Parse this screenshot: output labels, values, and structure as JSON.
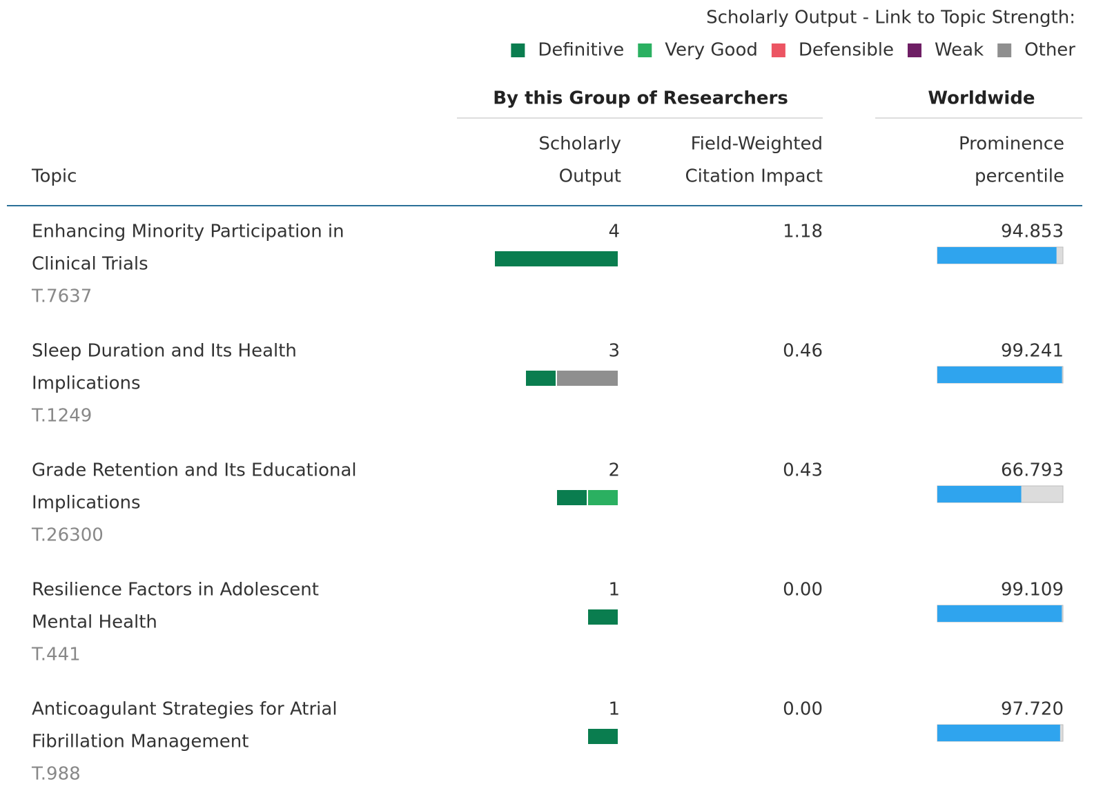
{
  "legend": {
    "title": "Scholarly Output - Link to Topic Strength:",
    "items": [
      {
        "label": "Definitive",
        "color": "#0a7d4f"
      },
      {
        "label": "Very Good",
        "color": "#2bb061"
      },
      {
        "label": "Defensible",
        "color": "#ec5563"
      },
      {
        "label": "Weak",
        "color": "#6e1e64"
      },
      {
        "label": "Other",
        "color": "#8f8f8f"
      }
    ]
  },
  "table": {
    "group_headers": [
      "By this Group of Researchers",
      "Worldwide"
    ],
    "columns": {
      "topic": [
        "Topic"
      ],
      "output": [
        "Scholarly",
        "Output"
      ],
      "fwci": [
        "Field-Weighted",
        "Citation Impact"
      ],
      "prominence": [
        "Prominence",
        "percentile"
      ]
    },
    "prominence_color": "#2fa4ee",
    "rows": [
      {
        "topic": [
          "Enhancing Minority Participation in",
          "Clinical Trials"
        ],
        "id": "T.7637",
        "output": 4,
        "output_by_strength": [
          4,
          0,
          0,
          0,
          0
        ],
        "fwci": "1.18",
        "prominence": {
          "value": 94.853,
          "label": "94.853"
        }
      },
      {
        "topic": [
          "Sleep Duration and Its Health",
          "Implications"
        ],
        "id": "T.1249",
        "output": 3,
        "output_by_strength": [
          1,
          0,
          0,
          0,
          2
        ],
        "fwci": "0.46",
        "prominence": {
          "value": 99.241,
          "label": "99.241"
        }
      },
      {
        "topic": [
          "Grade Retention and Its Educational",
          "Implications"
        ],
        "id": "T.26300",
        "output": 2,
        "output_by_strength": [
          1,
          1,
          0,
          0,
          0
        ],
        "fwci": "0.43",
        "prominence": {
          "value": 66.793,
          "label": "66.793"
        }
      },
      {
        "topic": [
          "Resilience Factors in Adolescent",
          "Mental Health"
        ],
        "id": "T.441",
        "output": 1,
        "output_by_strength": [
          1,
          0,
          0,
          0,
          0
        ],
        "fwci": "0.00",
        "prominence": {
          "value": 99.109,
          "label": "99.109"
        }
      },
      {
        "topic": [
          "Anticoagulant Strategies for Atrial",
          "Fibrillation Management"
        ],
        "id": "T.988",
        "output": 1,
        "output_by_strength": [
          1,
          0,
          0,
          0,
          0
        ],
        "fwci": "0.00",
        "prominence": {
          "value": 97.72,
          "label": "97.720"
        }
      }
    ]
  }
}
